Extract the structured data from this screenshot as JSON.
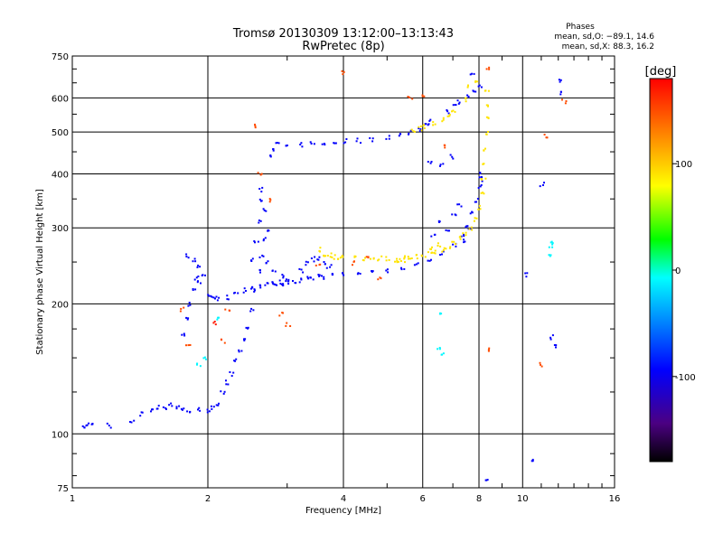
{
  "chart_data": {
    "type": "scatter",
    "title": "Tromsø 20130309 13:12:00–13:13:43",
    "subtitle": "RwPretec (8p)",
    "xlabel": "Frequency [MHz]",
    "ylabel": "Stationary phase Virtual Height [km]",
    "x_scale": "log",
    "y_scale": "log",
    "xlim": [
      1,
      16
    ],
    "ylim": [
      75,
      750
    ],
    "x_ticks": [
      1,
      2,
      4,
      6,
      8,
      10,
      16
    ],
    "y_ticks": [
      75,
      100,
      200,
      300,
      400,
      500,
      600,
      750
    ],
    "grid": true,
    "stats": {
      "heading": "Phases",
      "line_o": "mean, sd,O: −89.1, 14.6",
      "line_x": "mean, sd,X:  88.3, 16.2"
    },
    "colorbar": {
      "label": "[deg]",
      "range": [
        -180,
        180
      ],
      "ticks": [
        -100,
        0,
        100
      ],
      "colors": [
        "#000000",
        "#4b0082",
        "#0000ff",
        "#0080ff",
        "#00ffff",
        "#00ff00",
        "#ffff00",
        "#ff8000",
        "#ff0000"
      ]
    },
    "series": [
      {
        "phase": -95,
        "points": [
          [
            1.06,
            104
          ],
          [
            1.08,
            106
          ],
          [
            1.1,
            105
          ],
          [
            1.2,
            105
          ],
          [
            1.35,
            107
          ],
          [
            1.42,
            112
          ],
          [
            1.5,
            114
          ],
          [
            1.55,
            116
          ],
          [
            1.6,
            115
          ],
          [
            1.65,
            117
          ],
          [
            1.7,
            116
          ],
          [
            1.75,
            114
          ],
          [
            1.8,
            114
          ],
          [
            1.9,
            114
          ],
          [
            2.0,
            114
          ],
          [
            2.05,
            116
          ],
          [
            2.1,
            118
          ],
          [
            2.15,
            125
          ],
          [
            2.2,
            132
          ],
          [
            2.25,
            138
          ],
          [
            2.3,
            148
          ],
          [
            2.35,
            155
          ],
          [
            2.4,
            165
          ],
          [
            2.45,
            178
          ],
          [
            2.5,
            195
          ],
          [
            2.55,
            215
          ],
          [
            2.6,
            240
          ],
          [
            2.62,
            260
          ],
          [
            2.65,
            285
          ],
          [
            2.7,
            300
          ],
          [
            2.65,
            330
          ],
          [
            2.6,
            350
          ],
          [
            2.62,
            370
          ],
          [
            2.6,
            310
          ],
          [
            2.55,
            280
          ],
          [
            2.5,
            255
          ],
          [
            1.75,
            170
          ],
          [
            1.8,
            185
          ],
          [
            1.82,
            200
          ],
          [
            1.85,
            215
          ],
          [
            1.88,
            230
          ],
          [
            1.9,
            245
          ],
          [
            1.85,
            255
          ],
          [
            1.8,
            260
          ],
          [
            1.9,
            225
          ],
          [
            1.95,
            235
          ],
          [
            2.0,
            210
          ],
          [
            2.05,
            208
          ],
          [
            2.1,
            207
          ],
          [
            2.2,
            208
          ],
          [
            2.3,
            212
          ],
          [
            2.4,
            216
          ],
          [
            2.5,
            218
          ],
          [
            2.6,
            220
          ],
          [
            2.7,
            222
          ],
          [
            2.8,
            224
          ],
          [
            2.9,
            225
          ],
          [
            3.0,
            226
          ],
          [
            3.2,
            228
          ],
          [
            3.4,
            230
          ],
          [
            3.6,
            232
          ],
          [
            3.8,
            234
          ],
          [
            4.0,
            236
          ],
          [
            4.3,
            237
          ],
          [
            4.6,
            238
          ],
          [
            5.0,
            240
          ],
          [
            5.4,
            243
          ],
          [
            5.8,
            247
          ],
          [
            6.2,
            253
          ],
          [
            6.6,
            263
          ],
          [
            7.0,
            275
          ],
          [
            7.3,
            290
          ],
          [
            7.5,
            305
          ],
          [
            7.7,
            325
          ],
          [
            7.9,
            350
          ],
          [
            8.0,
            375
          ],
          [
            8.05,
            390
          ],
          [
            8.1,
            400
          ],
          [
            2.7,
            250
          ],
          [
            2.8,
            240
          ],
          [
            2.9,
            232
          ],
          [
            3.0,
            228
          ],
          [
            3.2,
            240
          ],
          [
            3.3,
            250
          ],
          [
            3.4,
            255
          ],
          [
            3.5,
            256
          ],
          [
            3.6,
            250
          ],
          [
            3.7,
            245
          ],
          [
            2.75,
            440
          ],
          [
            2.8,
            455
          ],
          [
            2.85,
            470
          ],
          [
            3.0,
            468
          ],
          [
            3.2,
            470
          ],
          [
            3.4,
            472
          ],
          [
            3.6,
            474
          ],
          [
            3.8,
            476
          ],
          [
            4.0,
            478
          ],
          [
            4.3,
            480
          ],
          [
            4.6,
            483
          ],
          [
            5.0,
            488
          ],
          [
            5.3,
            493
          ],
          [
            5.6,
            500
          ],
          [
            5.9,
            510
          ],
          [
            6.1,
            520
          ],
          [
            6.2,
            530
          ],
          [
            6.8,
            560
          ],
          [
            7.0,
            575
          ],
          [
            7.2,
            590
          ],
          [
            7.5,
            610
          ],
          [
            7.8,
            630
          ],
          [
            2.8,
            225
          ],
          [
            2.9,
            222
          ],
          [
            3.1,
            226
          ],
          [
            3.3,
            230
          ],
          [
            3.5,
            233
          ],
          [
            6.3,
            290
          ],
          [
            6.5,
            310
          ],
          [
            6.8,
            300
          ],
          [
            7.0,
            320
          ],
          [
            7.2,
            340
          ],
          [
            7.4,
            280
          ],
          [
            7.6,
            300
          ],
          [
            8.3,
            78
          ],
          [
            10.2,
            235
          ],
          [
            10.5,
            88
          ],
          [
            11,
            380
          ],
          [
            12,
            660
          ],
          [
            12.2,
            620
          ],
          [
            11.5,
            168
          ],
          [
            11.8,
            160
          ],
          [
            6.2,
            430
          ],
          [
            6.6,
            420
          ],
          [
            6.9,
            440
          ],
          [
            7.7,
            690
          ],
          [
            8.0,
            640
          ]
        ]
      },
      {
        "phase": 90,
        "points": [
          [
            3.55,
            268
          ],
          [
            3.6,
            262
          ],
          [
            3.7,
            260
          ],
          [
            3.8,
            258
          ],
          [
            3.9,
            258
          ],
          [
            4.0,
            258
          ],
          [
            4.2,
            256
          ],
          [
            4.4,
            256
          ],
          [
            4.6,
            256
          ],
          [
            4.8,
            256
          ],
          [
            5.0,
            255
          ],
          [
            5.2,
            254
          ],
          [
            5.4,
            254
          ],
          [
            5.6,
            256
          ],
          [
            5.8,
            258
          ],
          [
            6.0,
            260
          ],
          [
            6.2,
            262
          ],
          [
            6.4,
            265
          ],
          [
            6.6,
            268
          ],
          [
            6.8,
            272
          ],
          [
            7.0,
            278
          ],
          [
            7.2,
            285
          ],
          [
            7.4,
            292
          ],
          [
            7.6,
            300
          ],
          [
            7.8,
            315
          ],
          [
            8.0,
            335
          ],
          [
            8.1,
            360
          ],
          [
            8.15,
            390
          ],
          [
            8.2,
            420
          ],
          [
            8.22,
            460
          ],
          [
            8.25,
            500
          ],
          [
            8.27,
            540
          ],
          [
            8.3,
            580
          ],
          [
            8.3,
            620
          ],
          [
            5.7,
            505
          ],
          [
            5.9,
            512
          ],
          [
            6.0,
            518
          ],
          [
            6.3,
            525
          ],
          [
            6.6,
            535
          ],
          [
            6.8,
            548
          ],
          [
            7.0,
            565
          ],
          [
            7.4,
            595
          ],
          [
            7.6,
            640
          ],
          [
            7.8,
            660
          ],
          [
            6.2,
            272
          ],
          [
            6.5,
            275
          ],
          [
            5.5,
            258
          ],
          [
            5.3,
            253
          ]
        ]
      },
      {
        "phase": 150,
        "points": [
          [
            2.55,
            520
          ],
          [
            4.0,
            690
          ],
          [
            5.6,
            600
          ],
          [
            6.0,
            610
          ],
          [
            1.75,
            195
          ],
          [
            1.8,
            160
          ],
          [
            2.15,
            165
          ],
          [
            2.2,
            195
          ],
          [
            2.9,
            190
          ],
          [
            3.0,
            180
          ],
          [
            3.5,
            245
          ],
          [
            4.2,
            250
          ],
          [
            4.5,
            257
          ],
          [
            4.8,
            230
          ],
          [
            11.2,
            490
          ],
          [
            8.4,
            158
          ],
          [
            11.0,
            145
          ],
          [
            12.3,
            590
          ],
          [
            8.3,
            700
          ],
          [
            2.6,
            400
          ],
          [
            2.75,
            350
          ],
          [
            6.7,
            465
          ]
        ]
      },
      {
        "phase": -10,
        "points": [
          [
            6.5,
            158
          ],
          [
            6.6,
            153
          ],
          [
            11.5,
            275
          ],
          [
            11.5,
            260
          ],
          [
            11.6,
            280
          ],
          [
            1.9,
            145
          ],
          [
            1.95,
            150
          ],
          [
            2.1,
            185
          ],
          [
            6.55,
            190
          ]
        ]
      },
      {
        "phase": 170,
        "points": [
          [
            2.05,
            182
          ]
        ]
      }
    ]
  }
}
